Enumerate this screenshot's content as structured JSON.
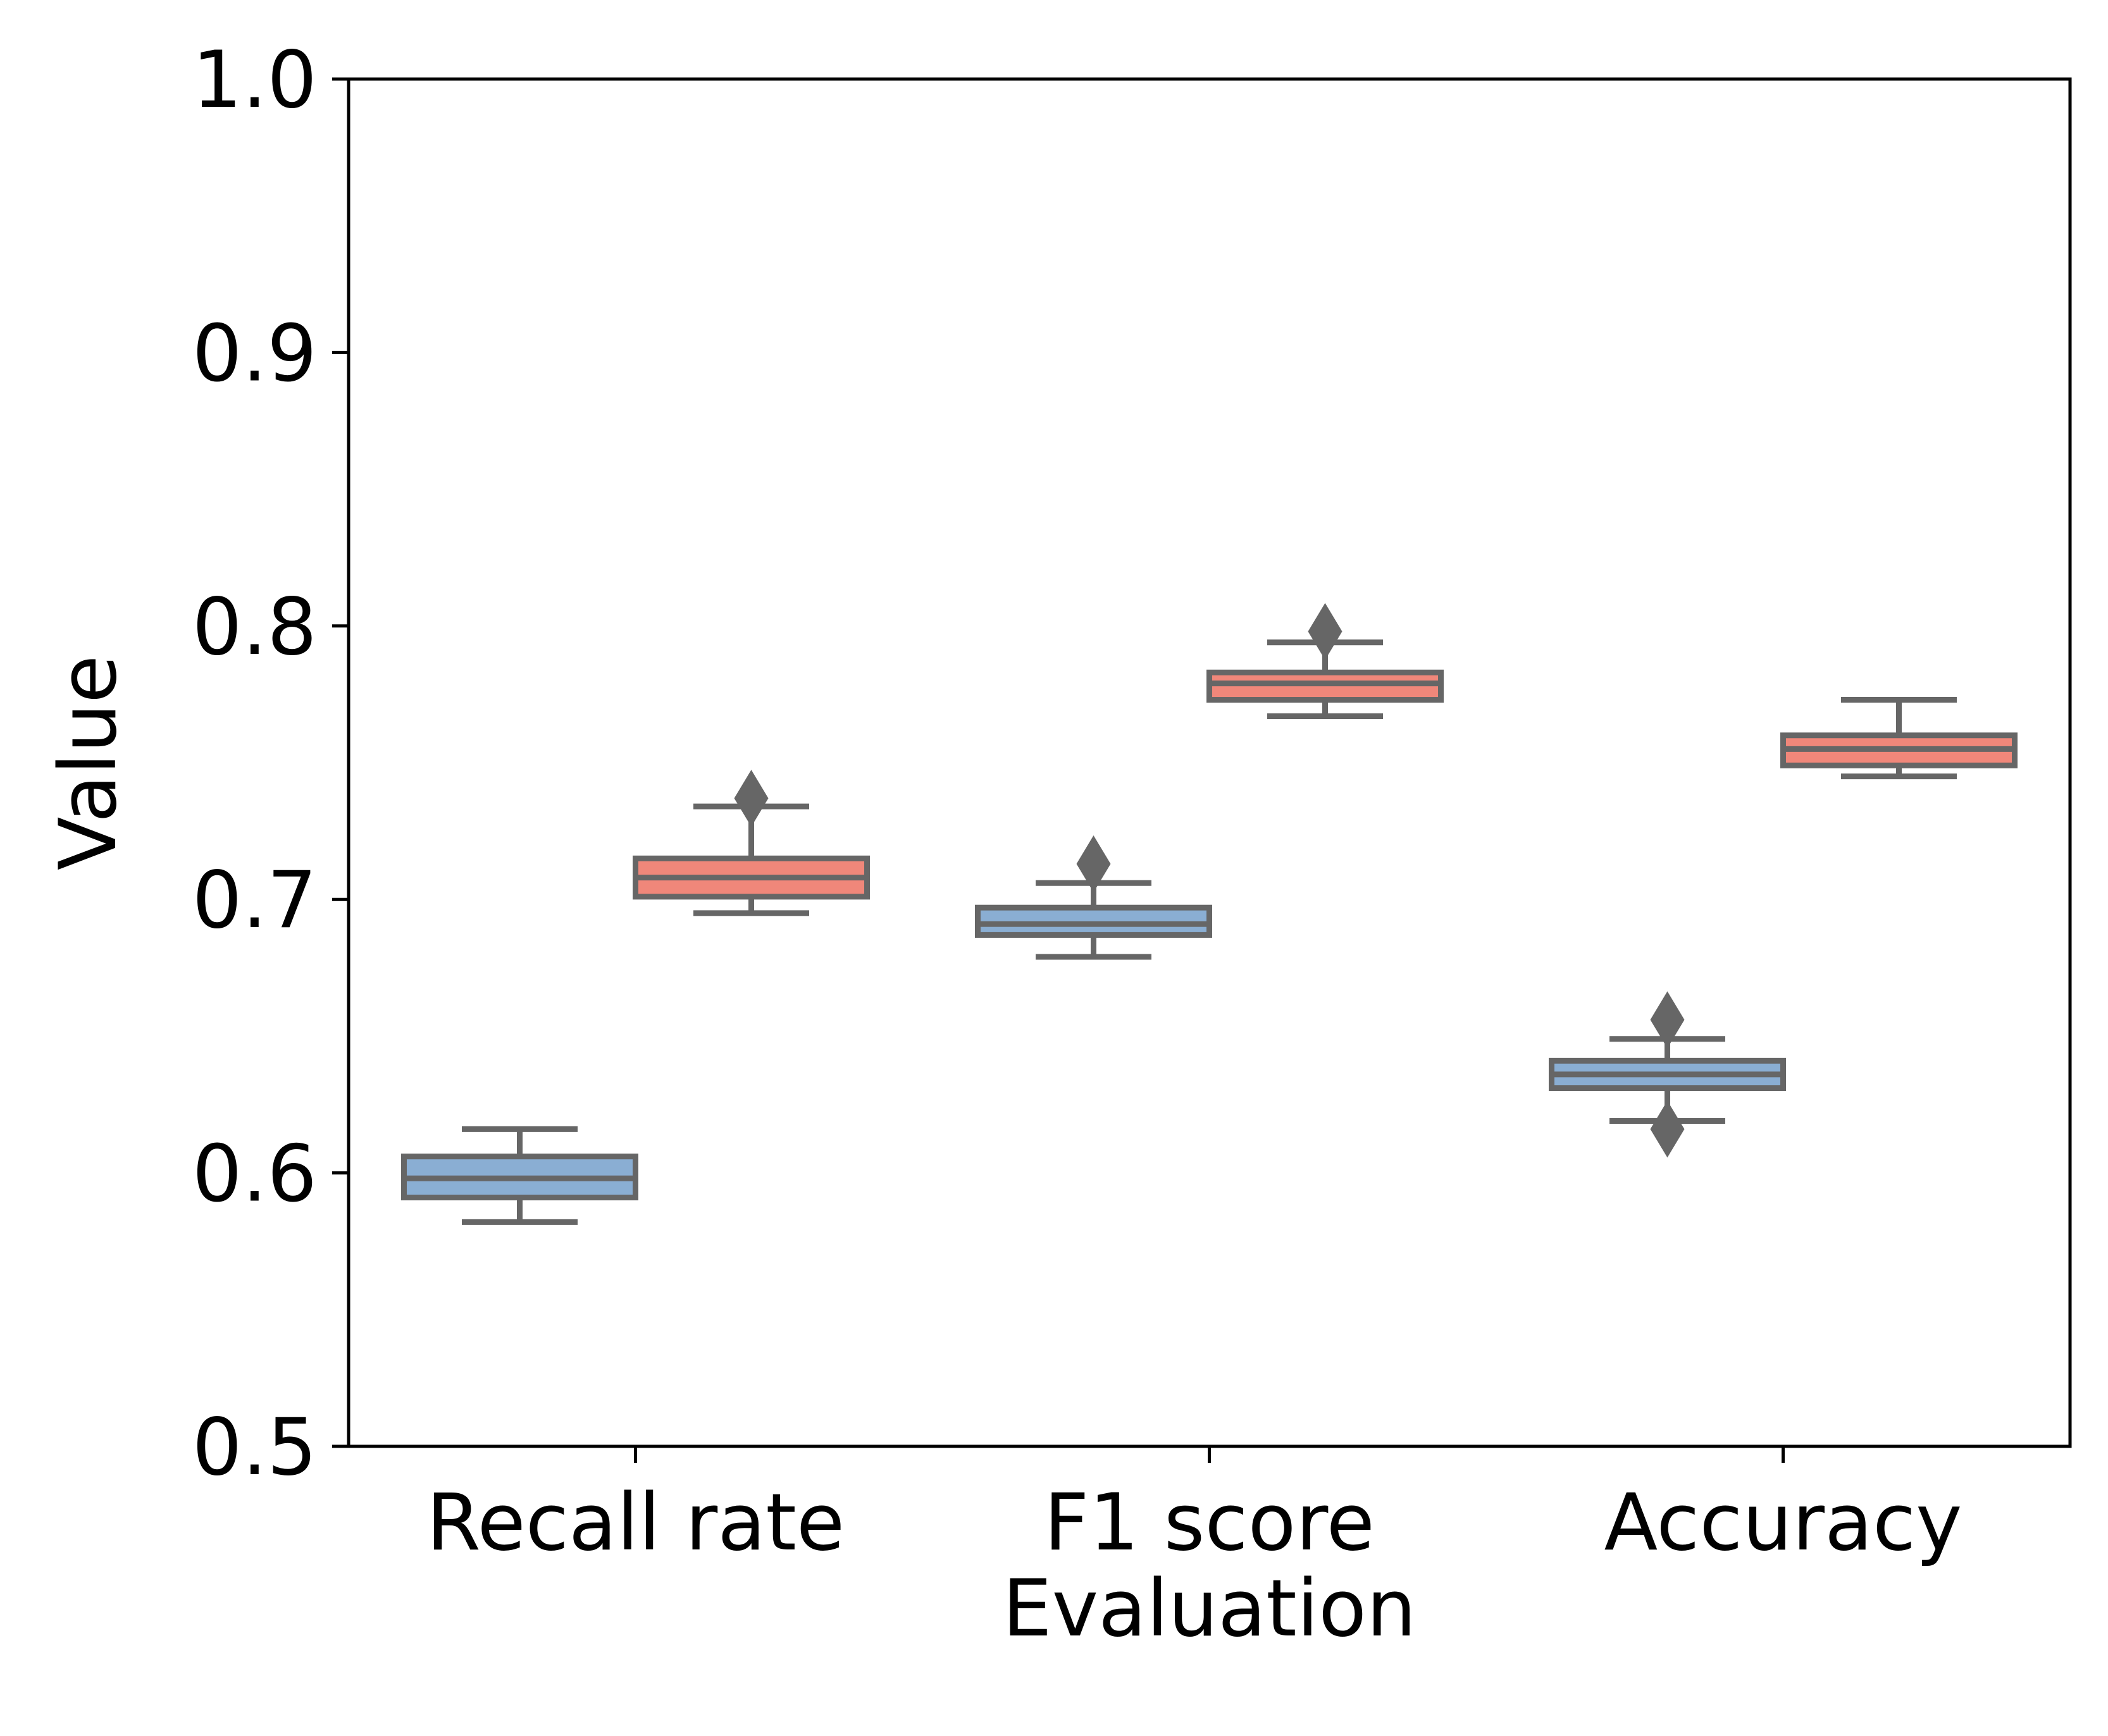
{
  "chart_data": {
    "type": "box",
    "xlabel": "Evaluation",
    "ylabel": "Value",
    "ylim": [
      0.5,
      1.0
    ],
    "yticks": [
      "0.5",
      "0.6",
      "0.7",
      "0.8",
      "0.9",
      "1.0"
    ],
    "categories": [
      "Recall rate",
      "F1 score",
      "Accuracy"
    ],
    "grid": false,
    "legend": "none",
    "colors": {
      "group_a_fill": "#8aaed3",
      "group_b_fill": "#f0877a",
      "box_edge": "#666666"
    },
    "series": [
      {
        "color_key": "group_a_fill",
        "boxes": [
          {
            "category": "Recall rate",
            "whisker_low": 0.582,
            "q1": 0.591,
            "median": 0.598,
            "q3": 0.606,
            "whisker_high": 0.616,
            "outliers": []
          },
          {
            "category": "F1 score",
            "whisker_low": 0.679,
            "q1": 0.687,
            "median": 0.691,
            "q3": 0.697,
            "whisker_high": 0.706,
            "outliers": [
              0.713
            ]
          },
          {
            "category": "Accuracy",
            "whisker_low": 0.619,
            "q1": 0.631,
            "median": 0.636,
            "q3": 0.641,
            "whisker_high": 0.649,
            "outliers": [
              0.656,
              0.616
            ]
          }
        ]
      },
      {
        "color_key": "group_b_fill",
        "boxes": [
          {
            "category": "Recall rate",
            "whisker_low": 0.695,
            "q1": 0.701,
            "median": 0.708,
            "q3": 0.715,
            "whisker_high": 0.734,
            "outliers": [
              0.737
            ]
          },
          {
            "category": "F1 score",
            "whisker_low": 0.767,
            "q1": 0.773,
            "median": 0.779,
            "q3": 0.783,
            "whisker_high": 0.794,
            "outliers": [
              0.798
            ]
          },
          {
            "category": "Accuracy",
            "whisker_low": 0.745,
            "q1": 0.749,
            "median": 0.755,
            "q3": 0.76,
            "whisker_high": 0.773,
            "outliers": []
          }
        ]
      }
    ]
  }
}
